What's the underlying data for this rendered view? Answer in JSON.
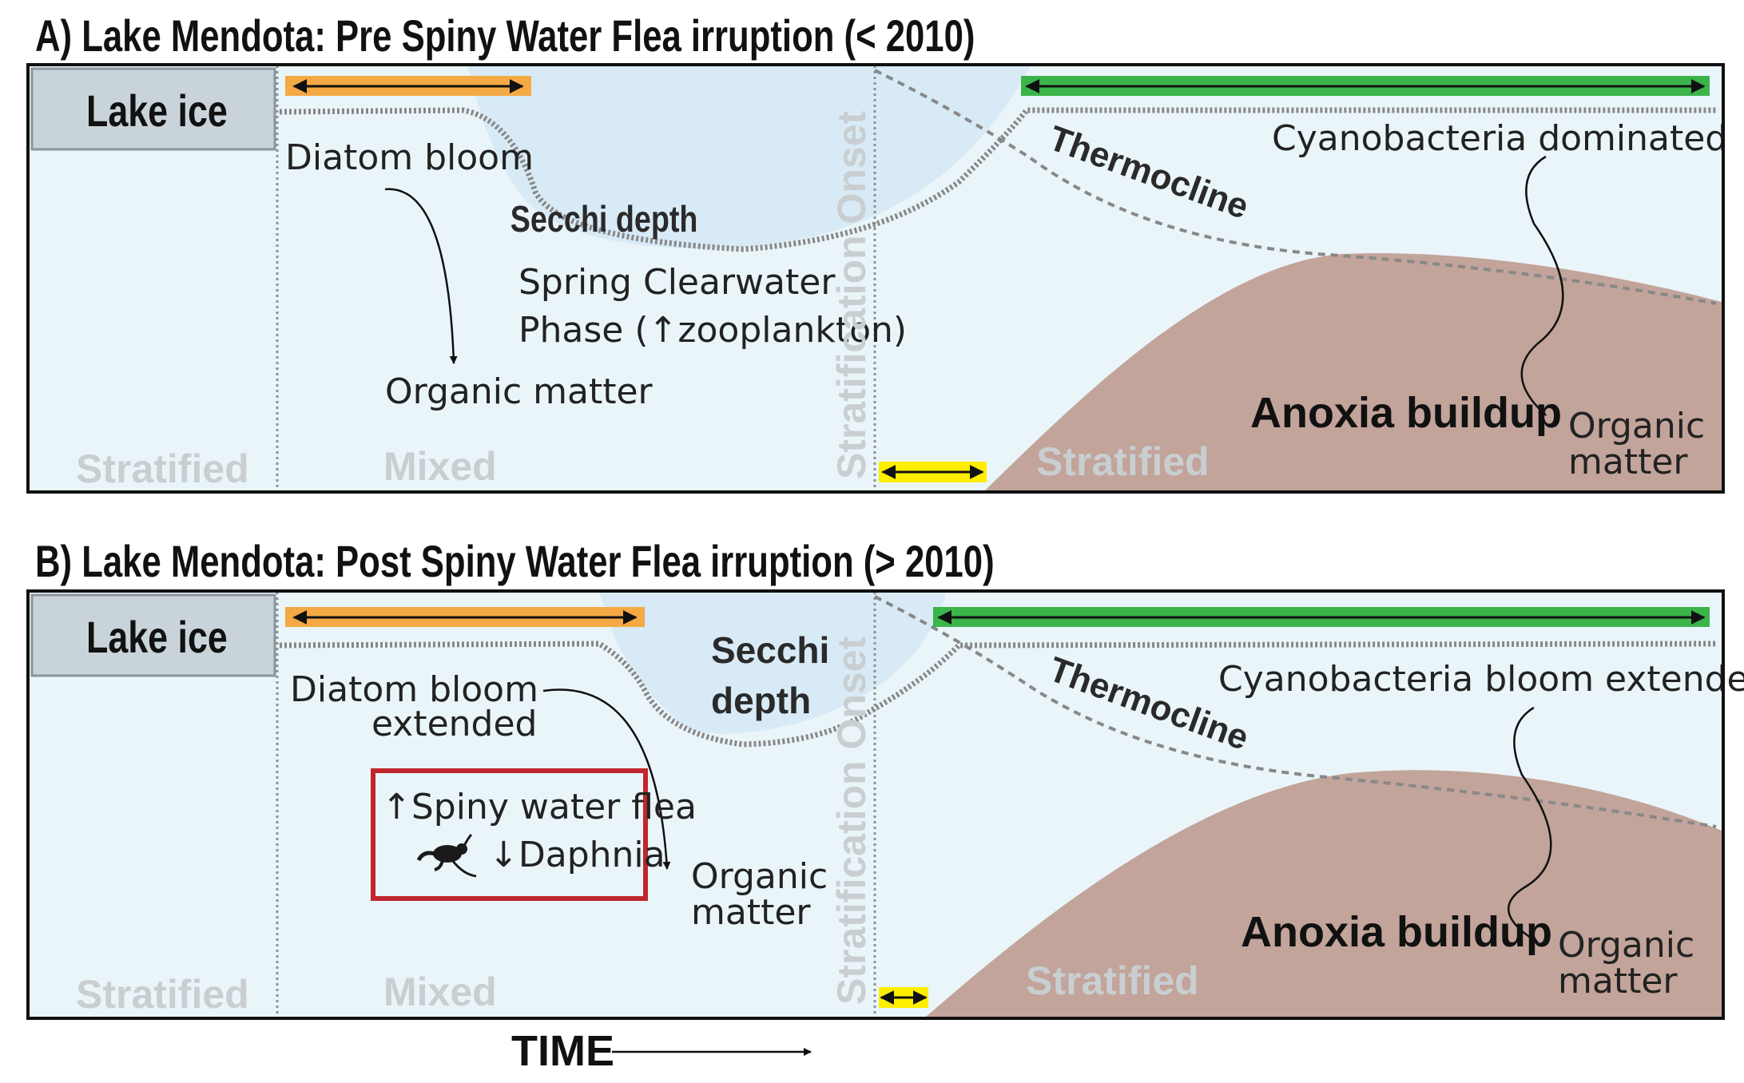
{
  "panel_a": {
    "title": "A)  Lake Mendota: Pre Spiny Water Flea irruption (< 2010)",
    "lake_ice": "Lake ice",
    "diatom_bloom": "Diatom bloom",
    "secchi_depth": "Secchi depth",
    "clearwater_line1": "Spring Clearwater",
    "clearwater_line2": "Phase (↑zooplankton)",
    "organic_matter_left": "Organic matter",
    "stratified_left": "Stratified",
    "mixed": "Mixed",
    "stratification_onset": "Stratification Onset",
    "thermocline": "Thermocline",
    "cyanobacteria": "Cyanobacteria dominated",
    "anoxia": "Anoxia buildup",
    "organic_right_1": "Organic",
    "organic_right_2": "matter",
    "stratified_right": "Stratified"
  },
  "panel_b": {
    "title": "B)  Lake Mendota: Post Spiny Water Flea irruption (> 2010)",
    "lake_ice": "Lake ice",
    "diatom_line1": "Diatom bloom",
    "diatom_line2": "extended",
    "secchi_line1": "Secchi",
    "secchi_line2": "depth",
    "flea_up": "↑Spiny water flea",
    "daphnia_down": "↓Daphnia",
    "organic_left_1": "Organic",
    "organic_left_2": "matter",
    "stratified_left": "Stratified",
    "mixed": "Mixed",
    "stratification_onset": "Stratification Onset",
    "thermocline": "Thermocline",
    "cyanobacteria": "Cyanobacteria bloom extended",
    "anoxia": "Anoxia buildup",
    "organic_right_1": "Organic",
    "organic_right_2": "matter",
    "stratified_right": "Stratified"
  },
  "time_label": "TIME",
  "icons": {
    "arrow": "double-headed-arrow",
    "flea": "spiny-water-flea-icon"
  },
  "colors": {
    "water": "#eaf5f9",
    "secchi": "#d8eaf5",
    "ice_fill": "#c9d4da",
    "anoxia": "#c2a49a",
    "diatom_bar": "#f4a944",
    "cyano_bar": "#3bb54a",
    "onset_bar": "#ffee00",
    "flea_box": "#c0272d"
  }
}
